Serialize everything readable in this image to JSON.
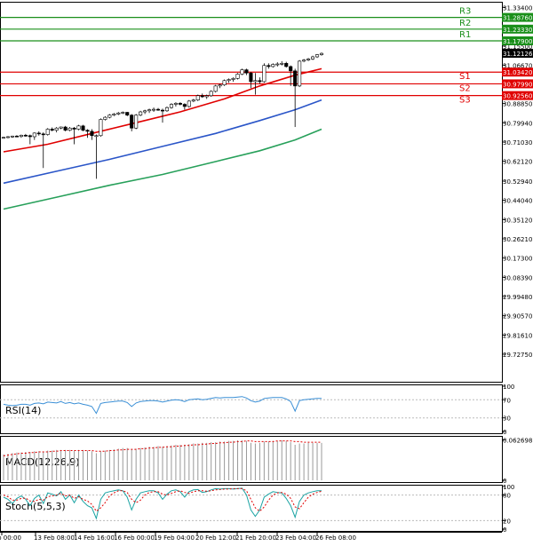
{
  "chart_data": {
    "type": "candlestick",
    "price_axis": {
      "ylim": [
        29.6,
        31.36
      ],
      "ticks": [
        "31.33400",
        "31.24400",
        "31.15500",
        "31.06670",
        "30.97650",
        "30.88850",
        "30.79940",
        "30.71030",
        "30.62120",
        "30.52940",
        "30.44040",
        "30.35120",
        "30.26210",
        "30.17300",
        "30.08390",
        "29.99480",
        "29.90570",
        "29.81610",
        "29.72750"
      ],
      "current_price": "31.12126"
    },
    "levels": [
      {
        "name": "R3",
        "value": 31.2876,
        "label": "31.28760",
        "color": "#1a8f1a"
      },
      {
        "name": "R2",
        "value": 31.2333,
        "label": "31.23330",
        "color": "#1a8f1a"
      },
      {
        "name": "R1",
        "value": 31.179,
        "label": "31.17900",
        "color": "#1a8f1a"
      },
      {
        "name": "S1",
        "value": 31.0342,
        "label": "31.03420",
        "color": "#e00000"
      },
      {
        "name": "S2",
        "value": 30.9799,
        "label": "30.97990",
        "color": "#e00000"
      },
      {
        "name": "S3",
        "value": 30.9256,
        "label": "30.92560",
        "color": "#e00000"
      }
    ],
    "x_labels": [
      "12 Feb 00:00",
      "13 Feb 08:00",
      "14 Feb 16:00",
      "16 Feb 00:00",
      "19 Feb 04:00",
      "20 Feb 12:00",
      "21 Feb 20:00",
      "23 Feb 04:00",
      "26 Feb 08:00"
    ],
    "candles": [
      {
        "o": 30.73,
        "h": 30.735,
        "l": 30.725,
        "c": 30.732
      },
      {
        "o": 30.732,
        "h": 30.738,
        "l": 30.728,
        "c": 30.735
      },
      {
        "o": 30.735,
        "h": 30.74,
        "l": 30.73,
        "c": 30.738
      },
      {
        "o": 30.738,
        "h": 30.742,
        "l": 30.733,
        "c": 30.736
      },
      {
        "o": 30.736,
        "h": 30.745,
        "l": 30.73,
        "c": 30.742
      },
      {
        "o": 30.742,
        "h": 30.748,
        "l": 30.735,
        "c": 30.74
      },
      {
        "o": 30.74,
        "h": 30.745,
        "l": 30.7,
        "c": 30.735
      },
      {
        "o": 30.735,
        "h": 30.755,
        "l": 30.72,
        "c": 30.752
      },
      {
        "o": 30.752,
        "h": 30.76,
        "l": 30.74,
        "c": 30.748
      },
      {
        "o": 30.748,
        "h": 30.755,
        "l": 30.59,
        "c": 30.745
      },
      {
        "o": 30.745,
        "h": 30.775,
        "l": 30.74,
        "c": 30.77
      },
      {
        "o": 30.77,
        "h": 30.778,
        "l": 30.76,
        "c": 30.765
      },
      {
        "o": 30.765,
        "h": 30.78,
        "l": 30.755,
        "c": 30.775
      },
      {
        "o": 30.775,
        "h": 30.782,
        "l": 30.77,
        "c": 30.78
      },
      {
        "o": 30.78,
        "h": 30.785,
        "l": 30.76,
        "c": 30.765
      },
      {
        "o": 30.765,
        "h": 30.78,
        "l": 30.76,
        "c": 30.775
      },
      {
        "o": 30.775,
        "h": 30.78,
        "l": 30.7,
        "c": 30.77
      },
      {
        "o": 30.77,
        "h": 30.79,
        "l": 30.765,
        "c": 30.785
      },
      {
        "o": 30.785,
        "h": 30.79,
        "l": 30.76,
        "c": 30.765
      },
      {
        "o": 30.765,
        "h": 30.77,
        "l": 30.73,
        "c": 30.76
      },
      {
        "o": 30.76,
        "h": 30.77,
        "l": 30.72,
        "c": 30.74
      },
      {
        "o": 30.74,
        "h": 30.745,
        "l": 30.54,
        "c": 30.74
      },
      {
        "o": 30.74,
        "h": 30.82,
        "l": 30.735,
        "c": 30.815
      },
      {
        "o": 30.815,
        "h": 30.83,
        "l": 30.81,
        "c": 30.825
      },
      {
        "o": 30.825,
        "h": 30.84,
        "l": 30.82,
        "c": 30.835
      },
      {
        "o": 30.835,
        "h": 30.845,
        "l": 30.83,
        "c": 30.84
      },
      {
        "o": 30.84,
        "h": 30.85,
        "l": 30.835,
        "c": 30.845
      },
      {
        "o": 30.845,
        "h": 30.852,
        "l": 30.84,
        "c": 30.848
      },
      {
        "o": 30.848,
        "h": 30.85,
        "l": 30.83,
        "c": 30.835
      },
      {
        "o": 30.835,
        "h": 30.84,
        "l": 30.76,
        "c": 30.775
      },
      {
        "o": 30.775,
        "h": 30.84,
        "l": 30.77,
        "c": 30.835
      },
      {
        "o": 30.835,
        "h": 30.855,
        "l": 30.83,
        "c": 30.85
      },
      {
        "o": 30.85,
        "h": 30.86,
        "l": 30.84,
        "c": 30.855
      },
      {
        "o": 30.855,
        "h": 30.865,
        "l": 30.845,
        "c": 30.86
      },
      {
        "o": 30.86,
        "h": 30.87,
        "l": 30.85,
        "c": 30.862
      },
      {
        "o": 30.862,
        "h": 30.868,
        "l": 30.855,
        "c": 30.858
      },
      {
        "o": 30.858,
        "h": 30.865,
        "l": 30.8,
        "c": 30.855
      },
      {
        "o": 30.855,
        "h": 30.875,
        "l": 30.85,
        "c": 30.87
      },
      {
        "o": 30.87,
        "h": 30.89,
        "l": 30.865,
        "c": 30.885
      },
      {
        "o": 30.885,
        "h": 30.895,
        "l": 30.875,
        "c": 30.89
      },
      {
        "o": 30.89,
        "h": 30.895,
        "l": 30.88,
        "c": 30.885
      },
      {
        "o": 30.885,
        "h": 30.89,
        "l": 30.86,
        "c": 30.875
      },
      {
        "o": 30.875,
        "h": 30.905,
        "l": 30.87,
        "c": 30.9
      },
      {
        "o": 30.9,
        "h": 30.91,
        "l": 30.895,
        "c": 30.905
      },
      {
        "o": 30.905,
        "h": 30.93,
        "l": 30.9,
        "c": 30.925
      },
      {
        "o": 30.925,
        "h": 30.935,
        "l": 30.915,
        "c": 30.92
      },
      {
        "o": 30.92,
        "h": 30.93,
        "l": 30.91,
        "c": 30.925
      },
      {
        "o": 30.925,
        "h": 30.95,
        "l": 30.92,
        "c": 30.945
      },
      {
        "o": 30.945,
        "h": 30.975,
        "l": 30.94,
        "c": 30.97
      },
      {
        "o": 30.97,
        "h": 30.98,
        "l": 30.96,
        "c": 30.975
      },
      {
        "o": 30.975,
        "h": 31.0,
        "l": 30.97,
        "c": 30.995
      },
      {
        "o": 30.995,
        "h": 31.005,
        "l": 30.985,
        "c": 31.0
      },
      {
        "o": 31.0,
        "h": 31.01,
        "l": 30.99,
        "c": 31.005
      },
      {
        "o": 31.005,
        "h": 31.03,
        "l": 31.0,
        "c": 31.025
      },
      {
        "o": 31.025,
        "h": 31.05,
        "l": 31.02,
        "c": 31.045
      },
      {
        "o": 31.045,
        "h": 31.05,
        "l": 31.02,
        "c": 31.03
      },
      {
        "o": 31.03,
        "h": 31.035,
        "l": 30.96,
        "c": 30.99
      },
      {
        "o": 30.99,
        "h": 31.03,
        "l": 30.93,
        "c": 30.995
      },
      {
        "o": 30.995,
        "h": 31.01,
        "l": 30.98,
        "c": 30.99
      },
      {
        "o": 30.99,
        "h": 31.075,
        "l": 30.985,
        "c": 31.065
      },
      {
        "o": 31.065,
        "h": 31.075,
        "l": 31.05,
        "c": 31.06
      },
      {
        "o": 31.06,
        "h": 31.075,
        "l": 31.055,
        "c": 31.07
      },
      {
        "o": 31.07,
        "h": 31.08,
        "l": 31.06,
        "c": 31.072
      },
      {
        "o": 31.072,
        "h": 31.085,
        "l": 31.065,
        "c": 31.075
      },
      {
        "o": 31.075,
        "h": 31.082,
        "l": 31.055,
        "c": 31.06
      },
      {
        "o": 31.06,
        "h": 31.065,
        "l": 30.97,
        "c": 31.04
      },
      {
        "o": 31.04,
        "h": 31.05,
        "l": 30.78,
        "c": 30.97
      },
      {
        "o": 30.97,
        "h": 31.09,
        "l": 30.965,
        "c": 31.085
      },
      {
        "o": 31.085,
        "h": 31.095,
        "l": 31.08,
        "c": 31.09
      },
      {
        "o": 31.09,
        "h": 31.1,
        "l": 31.085,
        "c": 31.095
      },
      {
        "o": 31.095,
        "h": 31.11,
        "l": 31.09,
        "c": 31.105
      },
      {
        "o": 31.105,
        "h": 31.118,
        "l": 31.1,
        "c": 31.115
      },
      {
        "o": 31.115,
        "h": 31.125,
        "l": 31.11,
        "c": 31.121
      }
    ],
    "moving_averages": [
      {
        "color": "#e00000",
        "points": [
          [
            0,
            30.665
          ],
          [
            10,
            30.7
          ],
          [
            20,
            30.75
          ],
          [
            30,
            30.8
          ],
          [
            40,
            30.85
          ],
          [
            50,
            30.91
          ],
          [
            58,
            30.97
          ],
          [
            66,
            31.02
          ],
          [
            72,
            31.05
          ]
        ]
      },
      {
        "color": "#2a55c8",
        "points": [
          [
            0,
            30.52
          ],
          [
            12,
            30.575
          ],
          [
            24,
            30.63
          ],
          [
            36,
            30.69
          ],
          [
            48,
            30.75
          ],
          [
            58,
            30.81
          ],
          [
            66,
            30.86
          ],
          [
            72,
            30.905
          ]
        ]
      },
      {
        "color": "#27a05a",
        "points": [
          [
            0,
            30.4
          ],
          [
            12,
            30.455
          ],
          [
            24,
            30.51
          ],
          [
            36,
            30.56
          ],
          [
            48,
            30.62
          ],
          [
            58,
            30.67
          ],
          [
            66,
            30.72
          ],
          [
            72,
            30.77
          ]
        ]
      }
    ],
    "indicators": [
      {
        "name": "RSI(14)",
        "ticks": [
          "100",
          "70",
          "30",
          "0"
        ],
        "ylim": [
          0,
          100
        ],
        "color": "#3a8fd6",
        "values": [
          60,
          58,
          57,
          58,
          60,
          60,
          58,
          62,
          63,
          61,
          65,
          64,
          63,
          66,
          62,
          64,
          61,
          63,
          60,
          58,
          55,
          40,
          62,
          64,
          65,
          66,
          67,
          67,
          64,
          55,
          63,
          66,
          67,
          68,
          68,
          67,
          65,
          67,
          69,
          70,
          69,
          66,
          70,
          71,
          72,
          70,
          71,
          73,
          75,
          74,
          75,
          75,
          75,
          76,
          77,
          74,
          68,
          65,
          67,
          73,
          74,
          75,
          75,
          75,
          72,
          66,
          45,
          68,
          70,
          71,
          72,
          73,
          73
        ]
      },
      {
        "name": "MACD(12,26,9)",
        "ticks": [
          "0.062698",
          "0"
        ],
        "ylim": [
          0,
          0.066
        ],
        "histogram": [
          0.04,
          0.041,
          0.042,
          0.043,
          0.043,
          0.044,
          0.044,
          0.045,
          0.045,
          0.044,
          0.046,
          0.046,
          0.047,
          0.047,
          0.047,
          0.047,
          0.046,
          0.047,
          0.047,
          0.046,
          0.045,
          0.042,
          0.045,
          0.046,
          0.047,
          0.048,
          0.049,
          0.05,
          0.05,
          0.048,
          0.049,
          0.05,
          0.051,
          0.052,
          0.052,
          0.053,
          0.052,
          0.053,
          0.054,
          0.055,
          0.055,
          0.055,
          0.056,
          0.057,
          0.057,
          0.058,
          0.058,
          0.059,
          0.059,
          0.06,
          0.06,
          0.061,
          0.061,
          0.062,
          0.062,
          0.061,
          0.058,
          0.057,
          0.058,
          0.06,
          0.06,
          0.061,
          0.061,
          0.062,
          0.061,
          0.059,
          0.055,
          0.057,
          0.057,
          0.058,
          0.058,
          0.058,
          0.058
        ],
        "signal": [
          0.038,
          0.039,
          0.04,
          0.041,
          0.042,
          0.042,
          0.043,
          0.043,
          0.044,
          0.044,
          0.044,
          0.045,
          0.045,
          0.046,
          0.046,
          0.046,
          0.046,
          0.046,
          0.046,
          0.046,
          0.046,
          0.045,
          0.045,
          0.045,
          0.046,
          0.046,
          0.047,
          0.047,
          0.048,
          0.048,
          0.048,
          0.049,
          0.049,
          0.05,
          0.05,
          0.051,
          0.051,
          0.052,
          0.052,
          0.053,
          0.053,
          0.054,
          0.054,
          0.055,
          0.055,
          0.056,
          0.056,
          0.057,
          0.057,
          0.058,
          0.058,
          0.059,
          0.059,
          0.06,
          0.06,
          0.061,
          0.061,
          0.06,
          0.06,
          0.06,
          0.06,
          0.06,
          0.061,
          0.061,
          0.061,
          0.061,
          0.06,
          0.06,
          0.059,
          0.059,
          0.059,
          0.059,
          0.059
        ]
      },
      {
        "name": "Stoch(5,5,3)",
        "ticks": [
          "100",
          "80",
          "20",
          "0"
        ],
        "ylim": [
          0,
          100
        ],
        "k": [
          75,
          70,
          60,
          72,
          78,
          70,
          55,
          72,
          80,
          60,
          85,
          82,
          78,
          88,
          70,
          80,
          62,
          80,
          65,
          55,
          50,
          25,
          70,
          85,
          88,
          90,
          92,
          90,
          75,
          45,
          70,
          85,
          88,
          90,
          90,
          85,
          70,
          82,
          90,
          92,
          88,
          75,
          88,
          92,
          93,
          86,
          88,
          92,
          95,
          94,
          95,
          95,
          94,
          95,
          96,
          80,
          45,
          30,
          45,
          75,
          82,
          88,
          86,
          85,
          72,
          55,
          28,
          65,
          80,
          85,
          88,
          90,
          90
        ],
        "d": [
          80,
          76,
          68,
          68,
          72,
          73,
          66,
          65,
          70,
          68,
          76,
          78,
          80,
          84,
          78,
          80,
          72,
          76,
          70,
          66,
          58,
          42,
          50,
          62,
          78,
          85,
          90,
          90,
          86,
          70,
          62,
          68,
          80,
          86,
          88,
          88,
          82,
          80,
          84,
          88,
          90,
          86,
          84,
          88,
          90,
          90,
          89,
          90,
          92,
          93,
          94,
          94,
          95,
          95,
          95,
          90,
          70,
          50,
          42,
          52,
          68,
          80,
          85,
          86,
          82,
          72,
          52,
          48,
          62,
          75,
          82,
          86,
          89
        ]
      }
    ]
  }
}
